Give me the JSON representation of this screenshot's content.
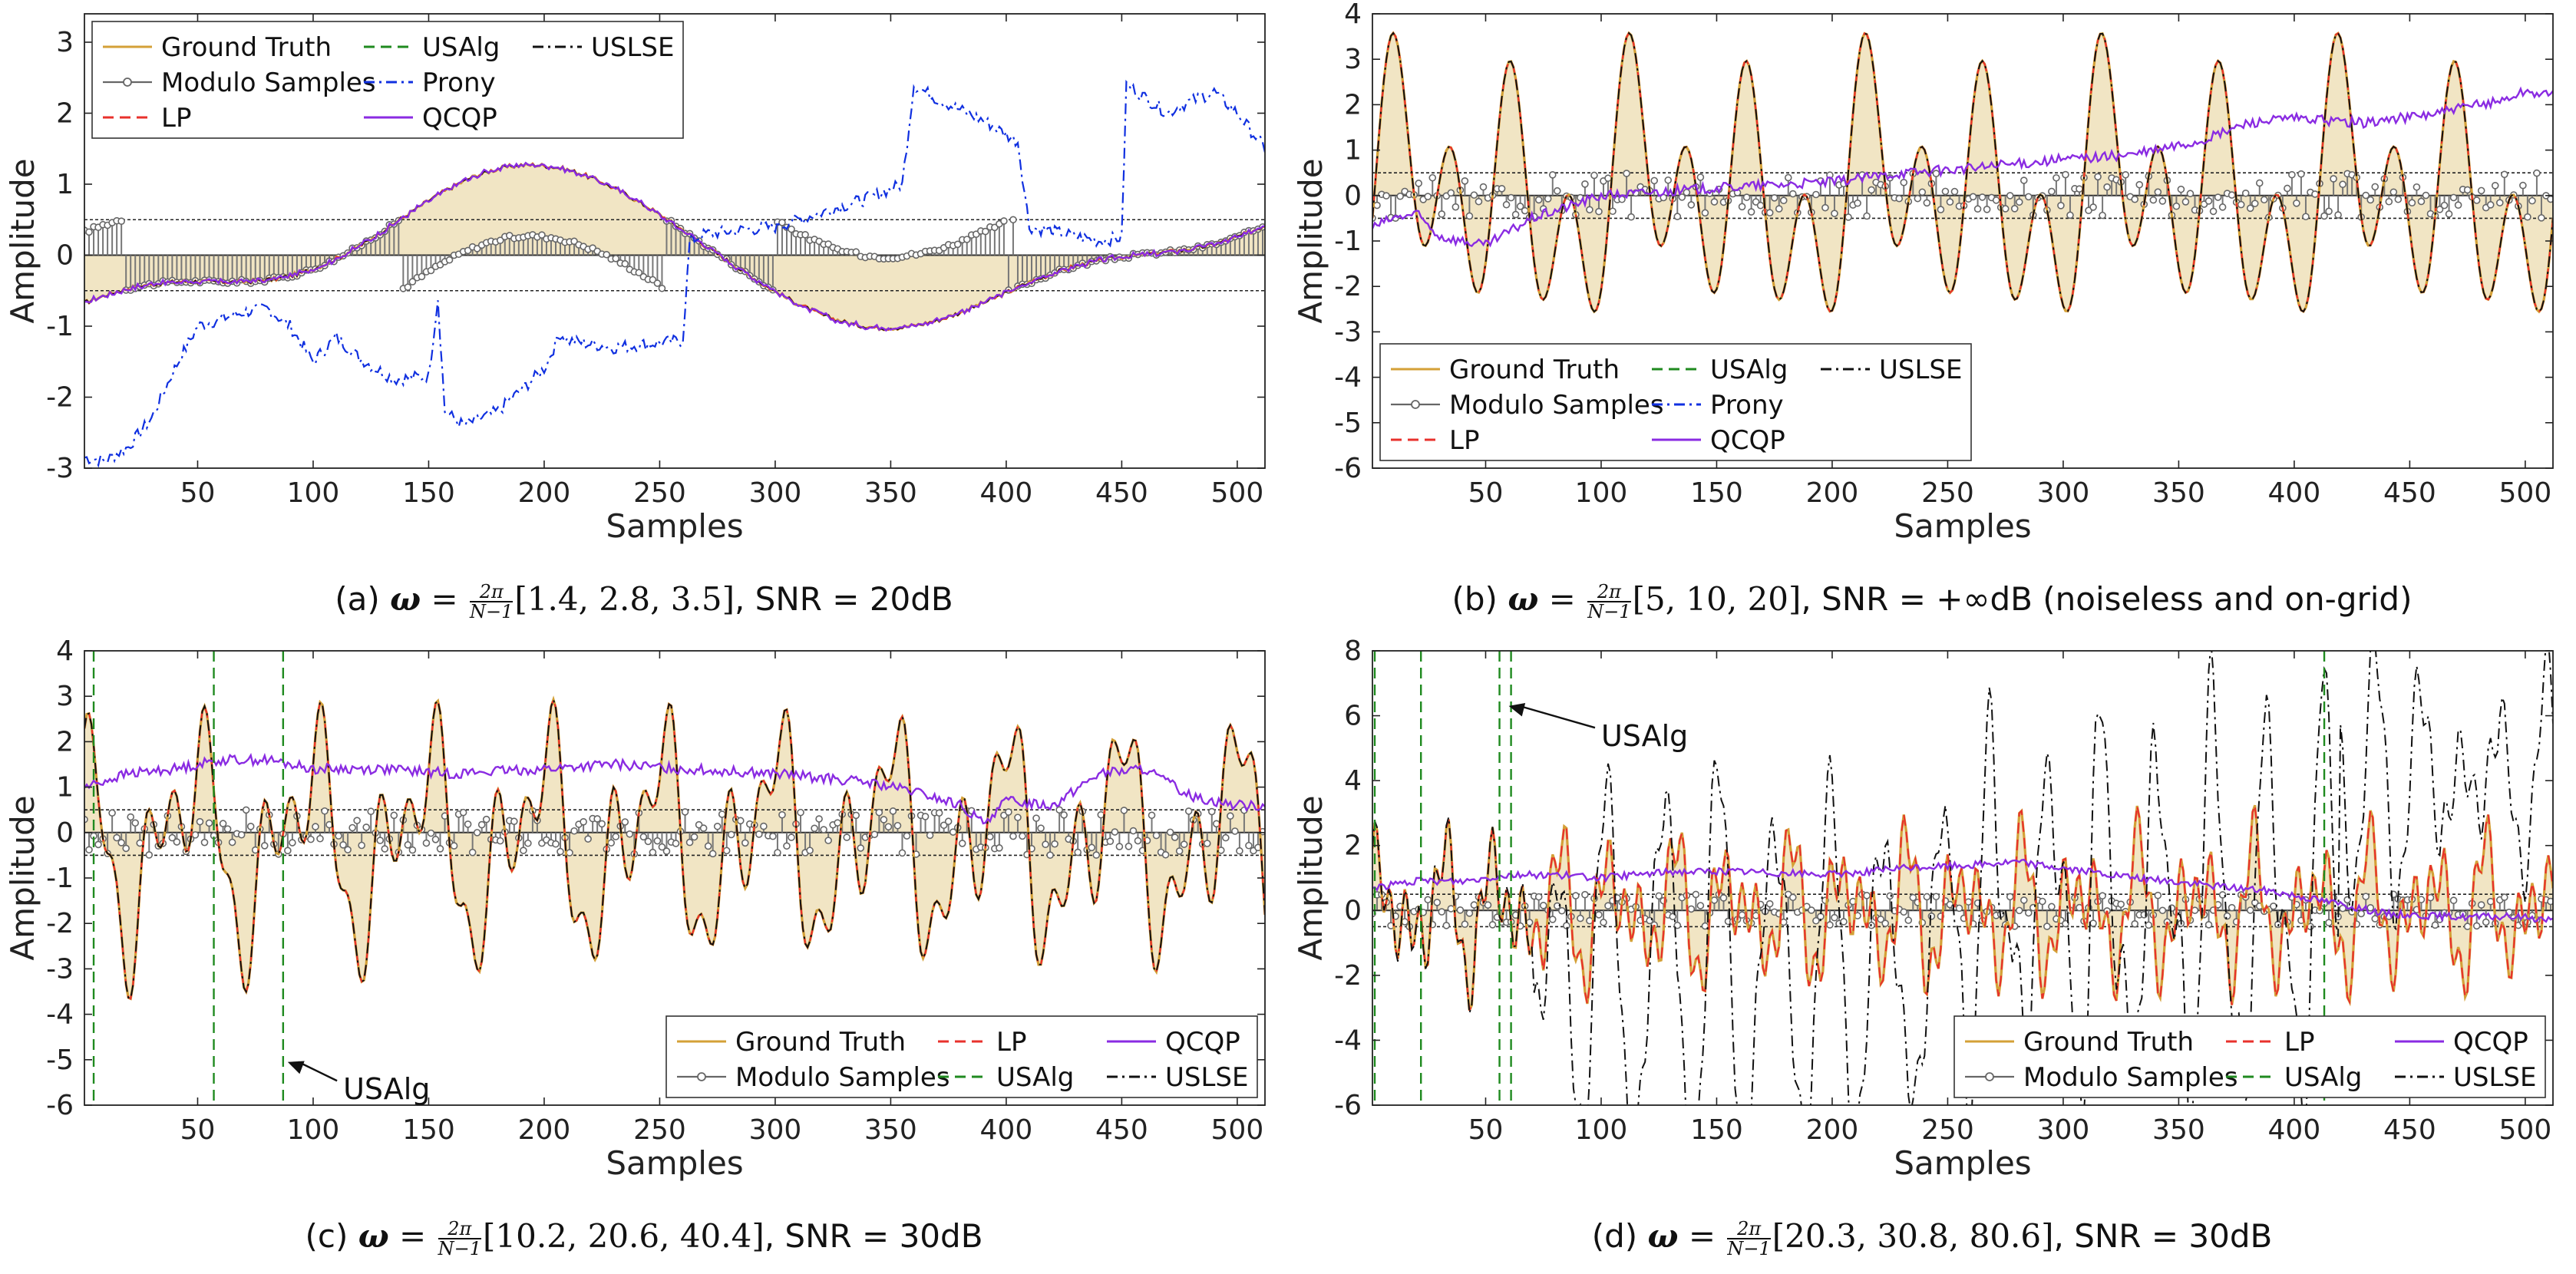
{
  "chart_data": [
    {
      "id": "a",
      "type": "line",
      "caption": {
        "prefix": "(a)",
        "omega_symbol": "ω",
        "eq": " = ",
        "frac_num": "2π",
        "frac_den": "N−1",
        "values": "[1.4, 2.8, 3.5]",
        "suffix": ", SNR = 20dB"
      },
      "xlabel": "Samples",
      "ylabel": "Amplitude",
      "xlim": [
        1,
        512
      ],
      "ylim": [
        -3,
        3.4
      ],
      "xticks": [
        50,
        100,
        150,
        200,
        250,
        300,
        350,
        400,
        450,
        500
      ],
      "yticks": [
        -3,
        -2,
        -1,
        0,
        1,
        2,
        3
      ],
      "threshold": 0.5,
      "legend": {
        "position": "top-left",
        "columns": 3,
        "entries": [
          {
            "label": "Ground Truth",
            "color": "#d4a037",
            "style": "solid",
            "key": "gt"
          },
          {
            "label": "Modulo Samples",
            "color": "#555555",
            "style": "stem",
            "key": "mod"
          },
          {
            "label": "LP",
            "color": "#e8312c",
            "style": "dashed",
            "key": "lp"
          },
          {
            "label": "USAlg",
            "color": "#1f8a1f",
            "style": "dashed",
            "key": "usalg"
          },
          {
            "label": "Prony",
            "color": "#1030e0",
            "style": "dashdot",
            "key": "prony"
          },
          {
            "label": "QCQP",
            "color": "#8a2be2",
            "style": "solid",
            "key": "qcqp"
          },
          {
            "label": "USLSE",
            "color": "#111111",
            "style": "dashdot",
            "key": "uslse"
          }
        ]
      },
      "ground_truth": {
        "bias": 0.05,
        "noise": 0.03,
        "components": [
          {
            "a": 1.0,
            "f": 1.4,
            "p": -1.62
          },
          {
            "a": 0.35,
            "f": 2.8,
            "p": 0.4
          },
          {
            "a": 0.15,
            "f": 3.5,
            "p": 1.2
          }
        ]
      },
      "series_samples": {
        "prony": {
          "x": [
            1,
            10,
            20,
            30,
            40,
            50,
            60,
            70,
            80,
            90,
            100,
            110,
            120,
            135,
            150,
            154,
            157,
            165,
            180,
            200,
            207,
            210,
            230,
            260,
            263,
            270,
            300,
            320,
            340,
            355,
            360,
            370,
            390,
            405,
            410,
            440,
            450,
            452,
            470,
            475,
            490,
            500,
            512
          ],
          "y": [
            -2.85,
            -2.9,
            -2.7,
            -2.3,
            -1.6,
            -1.0,
            -0.9,
            -0.8,
            -0.75,
            -1.0,
            -1.5,
            -1.15,
            -1.45,
            -1.75,
            -1.7,
            -0.6,
            -2.2,
            -2.4,
            -2.2,
            -1.6,
            -1.1,
            -1.2,
            -1.3,
            -1.2,
            0.2,
            0.3,
            0.4,
            0.6,
            0.8,
            1.0,
            2.4,
            2.2,
            1.9,
            1.6,
            0.4,
            0.2,
            0.25,
            2.4,
            2.0,
            2.1,
            2.3,
            2.0,
            1.5
          ]
        }
      },
      "show": {
        "gt": true,
        "mod": true,
        "lp": true,
        "qcqp": true,
        "uslse": true,
        "usalg": false,
        "prony": true
      },
      "annotation": null
    },
    {
      "id": "b",
      "type": "line",
      "caption": {
        "prefix": "(b)",
        "omega_symbol": "ω",
        "eq": " = ",
        "frac_num": "2π",
        "frac_den": "N−1",
        "values": "[5, 10, 20]",
        "suffix": ", SNR = +∞dB (noiseless and on-grid)"
      },
      "xlabel": "Samples",
      "ylabel": "Amplitude",
      "xlim": [
        1,
        512
      ],
      "ylim": [
        -6,
        4
      ],
      "xticks": [
        50,
        100,
        150,
        200,
        250,
        300,
        350,
        400,
        450,
        500
      ],
      "yticks": [
        -6,
        -5,
        -4,
        -3,
        -2,
        -1,
        0,
        1,
        2,
        3,
        4
      ],
      "threshold": 0.5,
      "legend": {
        "position": "bottom-left",
        "columns": 3,
        "entries": [
          {
            "label": "Ground Truth",
            "color": "#d4a037",
            "style": "solid",
            "key": "gt"
          },
          {
            "label": "Modulo Samples",
            "color": "#555555",
            "style": "stem",
            "key": "mod"
          },
          {
            "label": "LP",
            "color": "#e8312c",
            "style": "dashed",
            "key": "lp"
          },
          {
            "label": "USAlg",
            "color": "#1f8a1f",
            "style": "dashed",
            "key": "usalg"
          },
          {
            "label": "Prony",
            "color": "#1030e0",
            "style": "dashdot",
            "key": "prony"
          },
          {
            "label": "QCQP",
            "color": "#8a2be2",
            "style": "solid",
            "key": "qcqp"
          },
          {
            "label": "USLSE",
            "color": "#111111",
            "style": "dashdot",
            "key": "uslse"
          }
        ]
      },
      "ground_truth": {
        "bias": 0.0,
        "noise": 0.0,
        "components": [
          {
            "a": 0.6,
            "f": 5,
            "p": 0.0
          },
          {
            "a": 1.4,
            "f": 10,
            "p": 0.3
          },
          {
            "a": 1.9,
            "f": 20,
            "p": -0.5
          }
        ]
      },
      "series_samples": {
        "qcqp": {
          "x": [
            1,
            10,
            20,
            30,
            50,
            70,
            100,
            130,
            160,
            200,
            230,
            260,
            300,
            330,
            360,
            380,
            400,
            430,
            460,
            490,
            500,
            512
          ],
          "y": [
            -0.7,
            -0.5,
            -0.4,
            -0.9,
            -1.1,
            -0.5,
            0.0,
            0.1,
            0.2,
            0.3,
            0.5,
            0.6,
            0.8,
            0.9,
            1.2,
            1.6,
            1.7,
            1.6,
            1.8,
            2.1,
            2.3,
            2.2
          ]
        }
      },
      "show": {
        "gt": true,
        "mod": true,
        "lp": true,
        "qcqp": true,
        "uslse": true,
        "usalg": false,
        "prony": false
      },
      "annotation": null
    },
    {
      "id": "c",
      "type": "line",
      "caption": {
        "prefix": "(c)",
        "omega_symbol": "ω",
        "eq": " = ",
        "frac_num": "2π",
        "frac_den": "N−1",
        "values": "[10.2, 20.6, 40.4]",
        "suffix": ", SNR = 30dB"
      },
      "xlabel": "Samples",
      "ylabel": "Amplitude",
      "xlim": [
        1,
        512
      ],
      "ylim": [
        -6,
        4
      ],
      "xticks": [
        50,
        100,
        150,
        200,
        250,
        300,
        350,
        400,
        450,
        500
      ],
      "yticks": [
        -6,
        -5,
        -4,
        -3,
        -2,
        -1,
        0,
        1,
        2,
        3,
        4
      ],
      "threshold": 0.5,
      "legend": {
        "position": "bottom-right",
        "columns": 3,
        "entries": [
          {
            "label": "Ground Truth",
            "color": "#d4a037",
            "style": "solid",
            "key": "gt"
          },
          {
            "label": "LP",
            "color": "#e8312c",
            "style": "dashed",
            "key": "lp"
          },
          {
            "label": "QCQP",
            "color": "#8a2be2",
            "style": "solid",
            "key": "qcqp"
          },
          {
            "label": "Modulo Samples",
            "color": "#555555",
            "style": "stem",
            "key": "mod"
          },
          {
            "label": "USAlg",
            "color": "#1f8a1f",
            "style": "dashed",
            "key": "usalg"
          },
          {
            "label": "USLSE",
            "color": "#111111",
            "style": "dashdot",
            "key": "uslse"
          }
        ]
      },
      "ground_truth": {
        "bias": -0.2,
        "noise": 0.02,
        "components": [
          {
            "a": 1.6,
            "f": 10.2,
            "p": 2.1
          },
          {
            "a": 1.2,
            "f": 20.6,
            "p": 0.3
          },
          {
            "a": 0.9,
            "f": 40.4,
            "p": 1.0
          }
        ]
      },
      "series_samples": {
        "qcqp": {
          "x": [
            1,
            20,
            40,
            60,
            80,
            100,
            130,
            160,
            200,
            230,
            260,
            300,
            320,
            340,
            360,
            380,
            390,
            400,
            420,
            440,
            460,
            480,
            500,
            512
          ],
          "y": [
            1.0,
            1.3,
            1.4,
            1.6,
            1.6,
            1.4,
            1.4,
            1.3,
            1.4,
            1.5,
            1.4,
            1.3,
            1.2,
            1.1,
            0.9,
            0.6,
            0.2,
            0.7,
            0.6,
            1.3,
            1.4,
            0.8,
            0.6,
            0.6
          ]
        },
        "usalg_x": [
          5,
          57,
          87
        ]
      },
      "show": {
        "gt": true,
        "mod": true,
        "lp": true,
        "qcqp": true,
        "uslse": true,
        "usalg": true,
        "prony": false
      },
      "annotation": {
        "text": "USAlg",
        "target_x": 87,
        "target_y": -5.05,
        "text_x": 113,
        "text_y": -5.7
      }
    },
    {
      "id": "d",
      "type": "line",
      "caption": {
        "prefix": "(d)",
        "omega_symbol": "ω",
        "eq": " = ",
        "frac_num": "2π",
        "frac_den": "N−1",
        "values": "[20.3, 30.8, 80.6]",
        "suffix": ", SNR = 30dB"
      },
      "xlabel": "Samples",
      "ylabel": "Amplitude",
      "xlim": [
        1,
        512
      ],
      "ylim": [
        -6,
        8
      ],
      "xticks": [
        50,
        100,
        150,
        200,
        250,
        300,
        350,
        400,
        450,
        500
      ],
      "yticks": [
        -6,
        -4,
        -2,
        0,
        2,
        4,
        6,
        8
      ],
      "threshold": 0.5,
      "legend": {
        "position": "bottom-right",
        "columns": 3,
        "entries": [
          {
            "label": "Ground Truth",
            "color": "#d4a037",
            "style": "solid",
            "key": "gt"
          },
          {
            "label": "LP",
            "color": "#e8312c",
            "style": "dashed",
            "key": "lp"
          },
          {
            "label": "QCQP",
            "color": "#8a2be2",
            "style": "solid",
            "key": "qcqp"
          },
          {
            "label": "Modulo Samples",
            "color": "#555555",
            "style": "stem",
            "key": "mod"
          },
          {
            "label": "USAlg",
            "color": "#1f8a1f",
            "style": "dashed",
            "key": "usalg"
          },
          {
            "label": "USLSE",
            "color": "#111111",
            "style": "dashdot",
            "key": "uslse"
          }
        ]
      },
      "ground_truth": {
        "bias": 0.0,
        "noise": 0.05,
        "components": [
          {
            "a": 1.3,
            "f": 20.3,
            "p": 0.5
          },
          {
            "a": 1.1,
            "f": 30.8,
            "p": 1.7
          },
          {
            "a": 0.9,
            "f": 80.6,
            "p": 0.2
          }
        ]
      },
      "series_samples": {
        "qcqp": {
          "x": [
            1,
            20,
            40,
            60,
            80,
            100,
            130,
            160,
            200,
            230,
            260,
            280,
            300,
            330,
            360,
            390,
            420,
            440,
            470,
            500,
            512
          ],
          "y": [
            0.7,
            0.9,
            0.9,
            1.1,
            1.1,
            1.0,
            1.2,
            1.2,
            1.1,
            1.3,
            1.4,
            1.5,
            1.3,
            1.0,
            0.8,
            0.6,
            0.2,
            -0.1,
            -0.2,
            -0.2,
            -0.3
          ]
        },
        "usalg_x": [
          2,
          22,
          56,
          61,
          413
        ]
      },
      "show": {
        "gt": true,
        "mod": true,
        "lp": true,
        "qcqp": true,
        "uslse": true,
        "usalg": true,
        "prony": false
      },
      "annotation": {
        "text": "USAlg",
        "target_x": 58,
        "target_y": 6.3,
        "text_x": 100,
        "text_y": 5.3
      }
    }
  ]
}
